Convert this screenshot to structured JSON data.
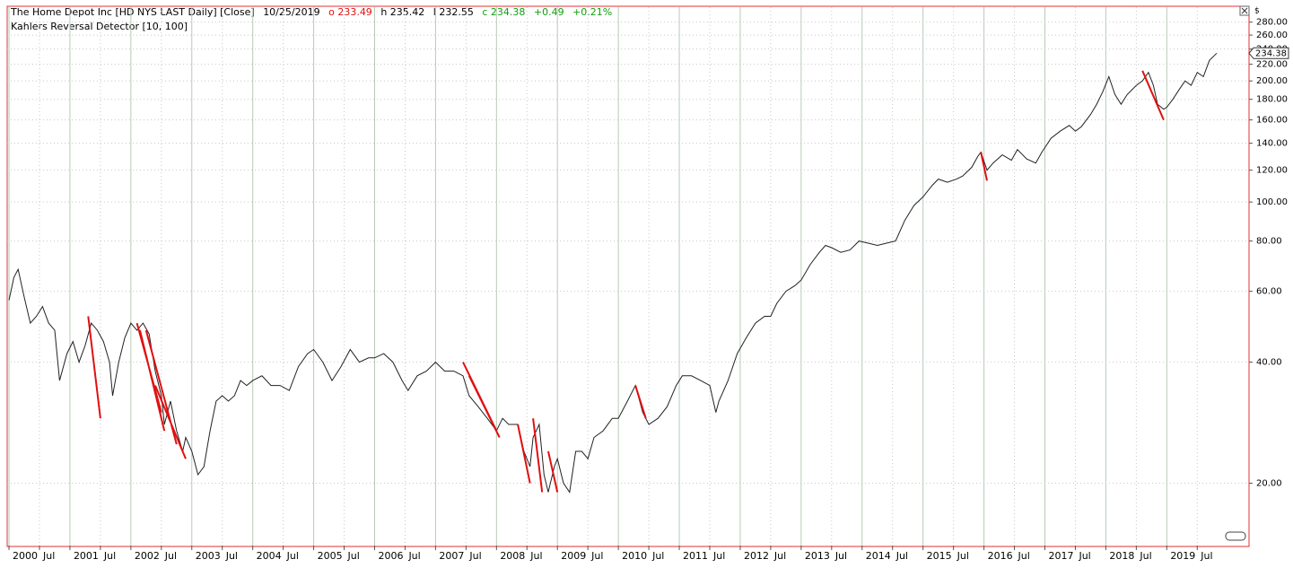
{
  "chart_data": {
    "type": "line",
    "log_scale": true,
    "grid": true,
    "ohlc": {
      "title": "The Home Depot Inc [HD NYS LAST Daily] [Close]",
      "date": "10/25/2019",
      "open": "o 233.49",
      "high": "h 235.42",
      "low": "l 232.55",
      "close": "c 234.38",
      "change": "+0.49",
      "change_pct": "+0.21%"
    },
    "currency": "$",
    "last_price": 234.38,
    "xlim": [
      1999.97,
      2020.35
    ],
    "ylim": [
      14,
      305
    ],
    "xticks": [
      {
        "value": 2000,
        "label": "2000"
      },
      {
        "value": 2000.5,
        "label": "Jul"
      },
      {
        "value": 2001,
        "label": "2001"
      },
      {
        "value": 2001.5,
        "label": "Jul"
      },
      {
        "value": 2002,
        "label": "2002"
      },
      {
        "value": 2002.5,
        "label": "Jul"
      },
      {
        "value": 2003,
        "label": "2003"
      },
      {
        "value": 2003.5,
        "label": "Jul"
      },
      {
        "value": 2004,
        "label": "2004"
      },
      {
        "value": 2004.5,
        "label": "Jul"
      },
      {
        "value": 2005,
        "label": "2005"
      },
      {
        "value": 2005.5,
        "label": "Jul"
      },
      {
        "value": 2006,
        "label": "2006"
      },
      {
        "value": 2006.5,
        "label": "Jul"
      },
      {
        "value": 2007,
        "label": "2007"
      },
      {
        "value": 2007.5,
        "label": "Jul"
      },
      {
        "value": 2008,
        "label": "2008"
      },
      {
        "value": 2008.5,
        "label": "Jul"
      },
      {
        "value": 2009,
        "label": "2009"
      },
      {
        "value": 2009.5,
        "label": "Jul"
      },
      {
        "value": 2010,
        "label": "2010"
      },
      {
        "value": 2010.5,
        "label": "Jul"
      },
      {
        "value": 2011,
        "label": "2011"
      },
      {
        "value": 2011.5,
        "label": "Jul"
      },
      {
        "value": 2012,
        "label": "2012"
      },
      {
        "value": 2012.5,
        "label": "Jul"
      },
      {
        "value": 2013,
        "label": "2013"
      },
      {
        "value": 2013.5,
        "label": "Jul"
      },
      {
        "value": 2014,
        "label": "2014"
      },
      {
        "value": 2014.5,
        "label": "Jul"
      },
      {
        "value": 2015,
        "label": "2015"
      },
      {
        "value": 2015.5,
        "label": "Jul"
      },
      {
        "value": 2016,
        "label": "2016"
      },
      {
        "value": 2016.5,
        "label": "Jul"
      },
      {
        "value": 2017,
        "label": "2017"
      },
      {
        "value": 2017.5,
        "label": "Jul"
      },
      {
        "value": 2018,
        "label": "2018"
      },
      {
        "value": 2018.5,
        "label": "Jul"
      },
      {
        "value": 2019,
        "label": "2019"
      },
      {
        "value": 2019.5,
        "label": "Jul"
      }
    ],
    "yticks": [
      {
        "value": 20,
        "label": "20.00"
      },
      {
        "value": 40,
        "label": "40.00"
      },
      {
        "value": 60,
        "label": "60.00"
      },
      {
        "value": 80,
        "label": "80.00"
      },
      {
        "value": 100,
        "label": "100.00"
      },
      {
        "value": 120,
        "label": "120.00"
      },
      {
        "value": 140,
        "label": "140.00"
      },
      {
        "value": 160,
        "label": "160.00"
      },
      {
        "value": 180,
        "label": "180.00"
      },
      {
        "value": 200,
        "label": "200.00"
      },
      {
        "value": 220,
        "label": "220.00"
      },
      {
        "value": 240,
        "label": "240.00"
      },
      {
        "value": 260,
        "label": "260.00"
      },
      {
        "value": 280,
        "label": "280.00"
      }
    ],
    "series": [
      {
        "name": "The Home Depot Inc [HD NYS LAST Daily] [Close]",
        "color": "#222222",
        "x": [
          2000.0,
          2000.08,
          2000.15,
          2000.25,
          2000.35,
          2000.45,
          2000.55,
          2000.65,
          2000.75,
          2000.83,
          2000.95,
          2001.05,
          2001.15,
          2001.25,
          2001.35,
          2001.45,
          2001.55,
          2001.65,
          2001.7,
          2001.8,
          2001.9,
          2002.0,
          2002.1,
          2002.2,
          2002.3,
          2002.4,
          2002.5,
          2002.55,
          2002.65,
          2002.75,
          2002.85,
          2002.9,
          2003.0,
          2003.1,
          2003.2,
          2003.3,
          2003.4,
          2003.5,
          2003.6,
          2003.7,
          2003.8,
          2003.9,
          2004.0,
          2004.15,
          2004.3,
          2004.45,
          2004.6,
          2004.75,
          2004.9,
          2005.0,
          2005.15,
          2005.3,
          2005.45,
          2005.6,
          2005.75,
          2005.9,
          2006.0,
          2006.15,
          2006.3,
          2006.45,
          2006.55,
          2006.7,
          2006.85,
          2007.0,
          2007.15,
          2007.3,
          2007.45,
          2007.55,
          2007.7,
          2007.85,
          2008.0,
          2008.1,
          2008.2,
          2008.35,
          2008.45,
          2008.55,
          2008.6,
          2008.7,
          2008.78,
          2008.85,
          2008.95,
          2009.0,
          2009.1,
          2009.2,
          2009.3,
          2009.4,
          2009.5,
          2009.6,
          2009.75,
          2009.9,
          2010.0,
          2010.15,
          2010.28,
          2010.4,
          2010.5,
          2010.65,
          2010.8,
          2010.95,
          2011.05,
          2011.2,
          2011.35,
          2011.5,
          2011.6,
          2011.65,
          2011.8,
          2011.95,
          2012.1,
          2012.25,
          2012.4,
          2012.5,
          2012.6,
          2012.75,
          2012.9,
          2013.0,
          2013.15,
          2013.3,
          2013.4,
          2013.5,
          2013.65,
          2013.8,
          2013.95,
          2014.1,
          2014.25,
          2014.4,
          2014.55,
          2014.7,
          2014.85,
          2015.0,
          2015.15,
          2015.25,
          2015.4,
          2015.55,
          2015.65,
          2015.8,
          2015.9,
          2015.95,
          2016.05,
          2016.15,
          2016.3,
          2016.45,
          2016.55,
          2016.7,
          2016.85,
          2016.95,
          2017.1,
          2017.25,
          2017.4,
          2017.5,
          2017.6,
          2017.75,
          2017.85,
          2017.95,
          2018.05,
          2018.15,
          2018.25,
          2018.35,
          2018.5,
          2018.6,
          2018.7,
          2018.78,
          2018.85,
          2018.95,
          2019.0,
          2019.1,
          2019.2,
          2019.3,
          2019.4,
          2019.5,
          2019.6,
          2019.7,
          2019.82
        ],
        "values": [
          57,
          65,
          68,
          58,
          50,
          52,
          55,
          50,
          48,
          36,
          42,
          45,
          40,
          44,
          50,
          48,
          45,
          40,
          33,
          40,
          46,
          50,
          48,
          50,
          47,
          38,
          33,
          28,
          32,
          27,
          24,
          26,
          24,
          21,
          22,
          27,
          32,
          33,
          32,
          33,
          36,
          35,
          36,
          37,
          35,
          35,
          34,
          39,
          42,
          43,
          40,
          36,
          39,
          43,
          40,
          41,
          41,
          42,
          40,
          36,
          34,
          37,
          38,
          40,
          38,
          38,
          37,
          33,
          31,
          29,
          27,
          29,
          28,
          28,
          24,
          22,
          26,
          28,
          21,
          19,
          22,
          23,
          20,
          19,
          24,
          24,
          23,
          26,
          27,
          29,
          29,
          32,
          35,
          30,
          28,
          29,
          31,
          35,
          37,
          37,
          36,
          35,
          30,
          32,
          36,
          42,
          46,
          50,
          52,
          52,
          56,
          60,
          62,
          64,
          70,
          75,
          78,
          77,
          75,
          76,
          80,
          79,
          78,
          79,
          80,
          90,
          98,
          103,
          110,
          114,
          112,
          114,
          116,
          122,
          130,
          133,
          120,
          125,
          131,
          127,
          135,
          128,
          125,
          133,
          144,
          150,
          155,
          150,
          154,
          165,
          175,
          188,
          205,
          185,
          175,
          185,
          195,
          200,
          210,
          195,
          175,
          170,
          172,
          180,
          190,
          200,
          195,
          210,
          205,
          225,
          234.38
        ]
      },
      {
        "name": "Kahlers Reversal Detector  [10, 100]",
        "color": "#e01010",
        "x": [
          2001.3,
          2001.5,
          2001.5,
          2002.1,
          2002.5,
          2002.5,
          2002.15,
          2002.55,
          2002.55,
          2002.25,
          2002.75,
          2002.75,
          2002.4,
          2002.9,
          2002.9,
          2007.45,
          2008.0,
          2008.0,
          2007.55,
          2008.05,
          2008.05,
          2008.35,
          2008.55,
          2008.55,
          2008.6,
          2008.75,
          2008.75,
          2008.85,
          2009.0,
          2009.0,
          2010.28,
          2010.45,
          2010.45,
          2015.95,
          2016.05,
          2016.05,
          2018.6,
          2018.95
        ],
        "values": [
          52,
          29,
          null,
          50,
          30,
          null,
          48,
          27,
          null,
          48,
          25,
          null,
          35,
          23,
          null,
          40,
          27,
          null,
          37,
          26,
          null,
          28,
          20,
          null,
          29,
          19,
          null,
          24,
          19,
          null,
          35,
          29,
          null,
          133,
          113,
          null,
          212,
          160
        ]
      }
    ]
  }
}
